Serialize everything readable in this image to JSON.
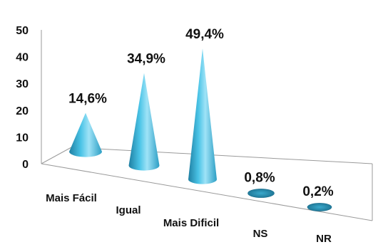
{
  "chart_data": {
    "type": "bar",
    "style": "3d-cone",
    "categories": [
      "Mais Fácil",
      "Igual",
      "Mais Dificil",
      "NS",
      "NR"
    ],
    "values": [
      14.6,
      34.9,
      49.4,
      0.8,
      0.2
    ],
    "data_labels": [
      "14,6%",
      "34,9%",
      "49,4%",
      "0,8%",
      "0,2%"
    ],
    "y_ticks": [
      "0",
      "10",
      "20",
      "30",
      "40",
      "50"
    ],
    "ylim": [
      0,
      50
    ],
    "title": "",
    "xlabel": "",
    "ylabel": "",
    "grid": false,
    "legend": "none",
    "colors": {
      "cone_dark": "#1a6e8c",
      "cone_mid": "#38b6dc",
      "cone_light": "#b8ecfb",
      "base_ellipse": "#2f8fb0",
      "floor_line": "#888888"
    }
  }
}
